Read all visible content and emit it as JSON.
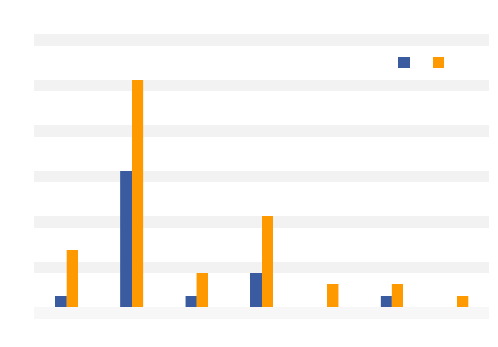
{
  "chart_data": {
    "type": "bar",
    "categories": [
      null,
      null,
      null,
      null,
      null,
      null,
      null
    ],
    "series": [
      {
        "color": "#3a5ba0",
        "values": [
          1,
          12,
          1,
          3,
          0,
          1,
          0
        ]
      },
      {
        "color": "#ff9900",
        "values": [
          5,
          20,
          3,
          8,
          2,
          2,
          1
        ]
      }
    ],
    "ylim": [
      0,
      24
    ],
    "yticks": [
      0,
      4,
      8,
      12,
      16,
      20,
      24
    ],
    "grid": true,
    "legend": "top-right"
  }
}
